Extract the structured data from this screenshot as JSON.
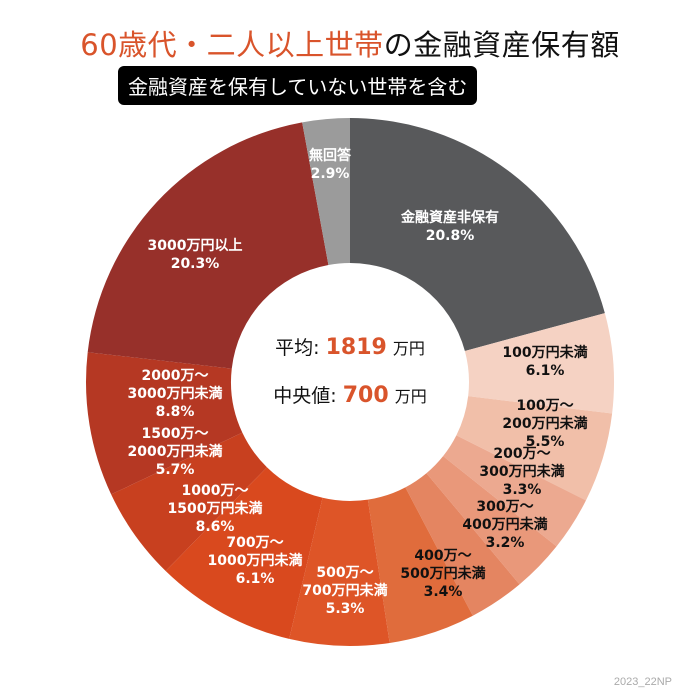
{
  "title": {
    "accent": "60歳代・二人以上世帯",
    "rest": "の金融資産保有額"
  },
  "subtitle": "金融資産を保有していない世帯を含む",
  "center": {
    "mean_label": "平均:",
    "mean_value": "1819",
    "mean_unit": "万円",
    "median_label": "中央値:",
    "median_value": "700",
    "median_unit": "万円",
    "value_color": "#d9542b"
  },
  "credit": "2023_22NP",
  "chart_data": {
    "type": "pie",
    "donut": true,
    "categories": [
      "金融資産非保有",
      "100万円未満",
      "100万〜\n200万円未満",
      "200万〜\n300万円未満",
      "300万〜\n400万円未満",
      "400万〜\n500万円未満",
      "500万〜\n700万円未満",
      "700万〜\n1000万円未満",
      "1000万〜\n1500万円未満",
      "1500万〜\n2000万円未満",
      "2000万〜\n3000万円未満",
      "3000万円以上",
      "無回答"
    ],
    "values": [
      20.8,
      6.1,
      5.5,
      3.3,
      3.2,
      3.4,
      5.3,
      6.1,
      8.6,
      5.7,
      8.8,
      20.3,
      2.9
    ],
    "value_labels": [
      "20.8%",
      "6.1%",
      "5.5%",
      "3.3%",
      "3.2%",
      "3.4%",
      "5.3%",
      "6.1%",
      "8.6%",
      "5.7%",
      "8.8%",
      "20.3%",
      "2.9%"
    ],
    "colors": [
      "#58595b",
      "#f5d2c3",
      "#f1bfa9",
      "#eca990",
      "#e9987a",
      "#e48561",
      "#e06c3c",
      "#de5527",
      "#d9491e",
      "#c8401f",
      "#b53823",
      "#97302a",
      "#9b9b9b"
    ],
    "label_colors": [
      "#ffffff",
      "#111111",
      "#111111",
      "#111111",
      "#111111",
      "#111111",
      "#ffffff",
      "#ffffff",
      "#ffffff",
      "#ffffff",
      "#ffffff",
      "#ffffff",
      "#ffffff"
    ],
    "start": "12 o'clock",
    "direction": "clockwise"
  }
}
